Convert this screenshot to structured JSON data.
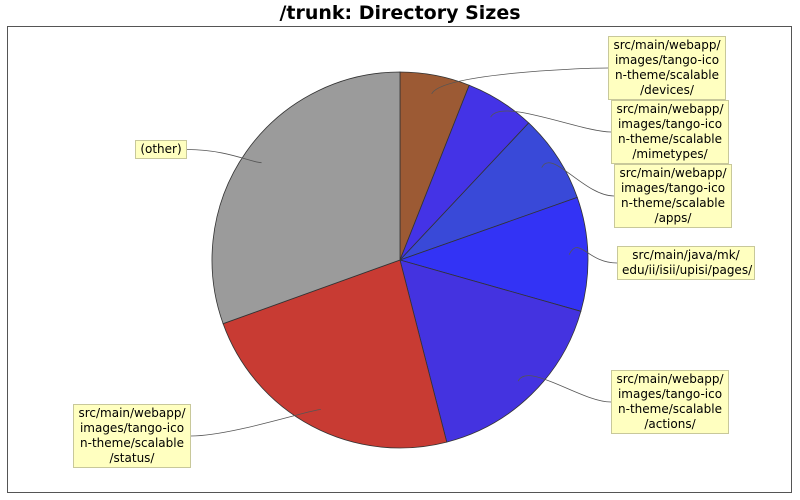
{
  "chart_data": {
    "type": "pie",
    "title": "/trunk: Directory Sizes",
    "slices": [
      {
        "label": "src/main/webapp/\nimages/tango-ico\nn-theme/scalable\n/devices/",
        "value": 6.0,
        "color": "#9c5a34"
      },
      {
        "label": "src/main/webapp/\nimages/tango-ico\nn-theme/scalable\n/mimetypes/",
        "value": 6.0,
        "color": "#4433e6"
      },
      {
        "label": "src/main/webapp/\nimages/tango-ico\nn-theme/scalable\n/apps/",
        "value": 7.6,
        "color": "#3949d8"
      },
      {
        "label": "src/main/java/mk/\nedu/ii/isii/upisi/pages/",
        "value": 9.8,
        "color": "#3333f5"
      },
      {
        "label": "src/main/webapp/\nimages/tango-ico\nn-theme/scalable\n/actions/",
        "value": 16.6,
        "color": "#4433e0"
      },
      {
        "label": "src/main/webapp/\nimages/tango-ico\nn-theme/scalable\n/status/",
        "value": 23.5,
        "color": "#c83b33"
      },
      {
        "label": "(other)",
        "value": 30.5,
        "color": "#9b9b9b"
      }
    ],
    "start_angle_deg": 90,
    "direction": "clockwise"
  }
}
